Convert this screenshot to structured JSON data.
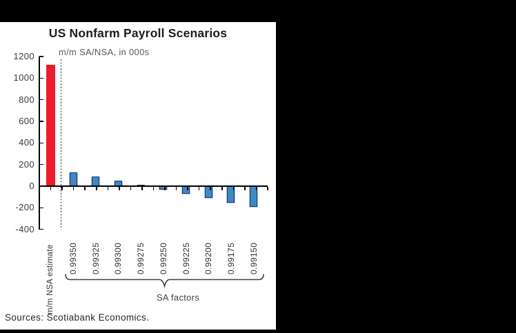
{
  "frame": {
    "background_color": "#000000",
    "panel_background_color": "#ffffff"
  },
  "chart_data": {
    "type": "bar",
    "title": "US Nonfarm Payroll Scenarios",
    "subtitle": "m/m SA/NSA, in 000s",
    "source": "Sources: Scotiabank Economics.",
    "group_label": "SA factors",
    "categories": [
      "m/m NSA estimate",
      "0.99350",
      "0.99325",
      "0.99300",
      "0.99275",
      "0.99250",
      "0.99225",
      "0.99200",
      "0.99175",
      "0.99150"
    ],
    "values": [
      1125,
      130,
      90,
      50,
      10,
      -30,
      -70,
      -110,
      -150,
      -190
    ],
    "nsa_index": 0,
    "yticks": [
      1200,
      1000,
      800,
      600,
      400,
      200,
      0,
      -200,
      -400
    ],
    "ylim": [
      -400,
      1200
    ],
    "grid": false,
    "legend": "none",
    "x_tick_label_rotation": 90,
    "separator_after_index": 0,
    "colors": {
      "nsa_bar": "#eb1c2d",
      "sa_bar_fill": "#3e88c3",
      "sa_bar_border": "#173c6b",
      "sa_bar_halo": "#b7cbe7",
      "axis": "#000000"
    }
  }
}
